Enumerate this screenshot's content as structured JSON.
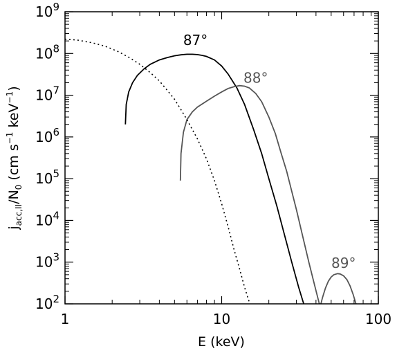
{
  "chart_data": {
    "type": "line",
    "title": "",
    "xlabel": "E (keV)",
    "ylabel": {
      "j": "j",
      "sub": "acc,II",
      "div": "/N",
      "n_sub": "0",
      "units_open": " (cm s",
      "exp_s": "−1",
      "units_mid": " keV",
      "exp_kev": "−1",
      "units_close": ")"
    },
    "x_scale": "log",
    "y_scale": "log",
    "xlim": [
      1,
      100
    ],
    "ylim": [
      100,
      1000000000
    ],
    "grid": false,
    "legend": "none",
    "x_ticks": [
      {
        "value": 1,
        "label": "1"
      },
      {
        "value": 10,
        "label": "10"
      },
      {
        "value": 100,
        "label": "100"
      }
    ],
    "y_ticks": [
      {
        "value": 100,
        "base": "10",
        "exp": "2"
      },
      {
        "value": 1000,
        "base": "10",
        "exp": "3"
      },
      {
        "value": 10000,
        "base": "10",
        "exp": "4"
      },
      {
        "value": 100000,
        "base": "10",
        "exp": "5"
      },
      {
        "value": 1000000,
        "base": "10",
        "exp": "6"
      },
      {
        "value": 10000000,
        "base": "10",
        "exp": "7"
      },
      {
        "value": 100000000,
        "base": "10",
        "exp": "8"
      },
      {
        "value": 1000000000,
        "base": "10",
        "exp": "9"
      }
    ],
    "series": [
      {
        "label": "87°",
        "label_at": [
          6.8,
          160000000
        ],
        "color": "#000000",
        "style": "solid",
        "x": [
          2.43,
          2.46,
          2.55,
          2.7,
          2.9,
          3.2,
          3.5,
          4.0,
          4.5,
          5.0,
          5.5,
          6.0,
          6.5,
          7.0,
          7.5,
          8.0,
          9.0,
          10.0,
          11.0,
          12.5,
          14.0,
          16.0,
          18.0,
          20.0,
          22.5,
          25.0,
          28.0,
          31.0,
          34.0
        ],
        "y": [
          2000000,
          6000000,
          12000000,
          20000000,
          30000000,
          43000000,
          55000000,
          70000000,
          80000000,
          88000000,
          93000000,
          96000000,
          96000000,
          94000000,
          90000000,
          85000000,
          70000000,
          50000000,
          32000000,
          15000000,
          6000000,
          1500000,
          400000,
          100000,
          22000,
          5000,
          1000,
          250,
          80
        ]
      },
      {
        "label": "88°",
        "label_at": [
          16.5,
          20000000
        ],
        "color": "#555555",
        "style": "solid",
        "x": [
          5.45,
          5.5,
          5.7,
          6.0,
          6.5,
          7.0,
          8.0,
          9.0,
          10.0,
          11.0,
          12.0,
          13.0,
          14.0,
          15.0,
          16.5,
          18.0,
          20.0,
          22.0,
          24.0,
          26.0,
          28.0,
          30.0,
          33.0,
          36.0,
          39.0,
          42.0,
          45.0
        ],
        "y": [
          90000,
          400000,
          1300000,
          2600000,
          4000000,
          5200000,
          7200000,
          9500000,
          12000000,
          14500000,
          16000000,
          17000000,
          16500000,
          15000000,
          11000000,
          7000000,
          3000000,
          1200000,
          400000,
          150000,
          50000,
          18000,
          4000,
          1000,
          300,
          100,
          40
        ]
      },
      {
        "label": "89°",
        "label_at": [
          60,
          730
        ],
        "color": "#555555",
        "style": "solid",
        "x": [
          42,
          44,
          46,
          48,
          50,
          52,
          55,
          57,
          60,
          63,
          66,
          69,
          72,
          75
        ],
        "y": [
          70,
          140,
          240,
          350,
          440,
          500,
          530,
          520,
          470,
          380,
          270,
          170,
          100,
          60
        ]
      },
      {
        "label": "",
        "color": "#000000",
        "style": "dotted",
        "x": [
          1.0,
          1.2,
          1.5,
          1.8,
          2.2,
          2.6,
          3.0,
          3.5,
          4.0,
          4.5,
          5.0,
          5.5,
          6.0,
          7.0,
          8.0,
          9.0,
          10.0,
          11.0,
          12.0,
          13.0,
          14.0,
          15.0,
          16.0
        ],
        "y": [
          220000000,
          210000000,
          180000000,
          150000000,
          110000000,
          78000000,
          55000000,
          35000000,
          22000000,
          13000000,
          8000000,
          4500000,
          2600000,
          900000,
          300000,
          90000,
          25000,
          7000,
          2000,
          700,
          250,
          110,
          40
        ]
      }
    ]
  }
}
